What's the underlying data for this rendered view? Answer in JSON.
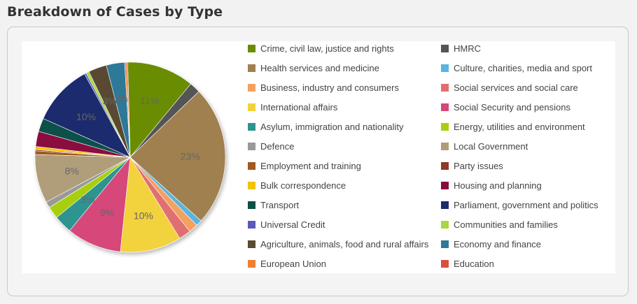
{
  "page": {
    "title": "Breakdown of Cases by Type"
  },
  "chart_data": {
    "type": "pie",
    "title": "Breakdown of Cases by Type",
    "legend_position": "right",
    "label_color": "#666666",
    "slices": [
      {
        "label": "Crime, civil law, justice and rights",
        "value": 11,
        "color": "#6a8c00",
        "data_label": "11%"
      },
      {
        "label": "HMRC",
        "value": 1.8,
        "color": "#555555",
        "data_label": ""
      },
      {
        "label": "Health services and medicine",
        "value": 23,
        "color": "#a08050",
        "data_label": "23%"
      },
      {
        "label": "Culture, charities, media and sport",
        "value": 1,
        "color": "#5ab4e0",
        "data_label": ""
      },
      {
        "label": "Business, industry and consumers",
        "value": 1.5,
        "color": "#f4a060",
        "data_label": ""
      },
      {
        "label": "Social services and social care",
        "value": 2,
        "color": "#e07070",
        "data_label": ""
      },
      {
        "label": "International affairs",
        "value": 10,
        "color": "#f2d23c",
        "data_label": "10%"
      },
      {
        "label": "Social Security and pensions",
        "value": 9,
        "color": "#d6477a",
        "data_label": "9%"
      },
      {
        "label": "Asylum, immigration and nationality",
        "value": 3,
        "color": "#2e9490",
        "data_label": "3%"
      },
      {
        "label": "Energy, utilities and environment",
        "value": 2,
        "color": "#a8cf10",
        "data_label": ""
      },
      {
        "label": "Defence",
        "value": 1,
        "color": "#999999",
        "data_label": ""
      },
      {
        "label": "Local Government",
        "value": 8,
        "color": "#b09e7a",
        "data_label": "8%"
      },
      {
        "label": "Employment and training",
        "value": 0.6,
        "color": "#a05a1e",
        "data_label": ""
      },
      {
        "label": "Party issues",
        "value": 0.2,
        "color": "#8b3a2a",
        "data_label": ""
      },
      {
        "label": "Bulk correspondence",
        "value": 0.5,
        "color": "#f0c400",
        "data_label": ""
      },
      {
        "label": "Housing and planning",
        "value": 2.5,
        "color": "#8a0a40",
        "data_label": ""
      },
      {
        "label": "Transport",
        "value": 2.2,
        "color": "#0a5048",
        "data_label": ""
      },
      {
        "label": "Parliament, government and politics",
        "value": 10,
        "color": "#1e2a6e",
        "data_label": "10%"
      },
      {
        "label": "Universal Credit",
        "value": 0.3,
        "color": "#5a5ab8",
        "data_label": ""
      },
      {
        "label": "Communities and families",
        "value": 0.5,
        "color": "#a8d840",
        "data_label": ""
      },
      {
        "label": "Agriculture, animals, food and rural affairs",
        "value": 3,
        "color": "#5a4a32",
        "data_label": "3%"
      },
      {
        "label": "Economy and finance",
        "value": 3,
        "color": "#2e7898",
        "data_label": "3%"
      },
      {
        "label": "European Union",
        "value": 0.3,
        "color": "#f08030",
        "data_label": ""
      },
      {
        "label": "Education",
        "value": 0.2,
        "color": "#d85040",
        "data_label": ""
      }
    ]
  }
}
